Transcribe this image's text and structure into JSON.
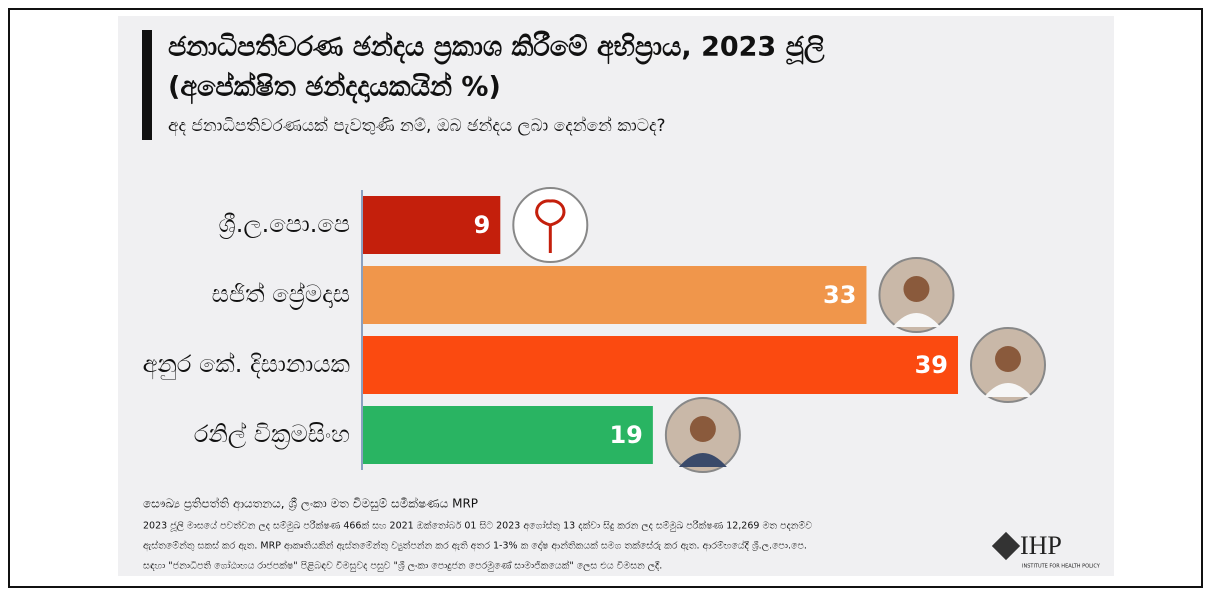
{
  "chart_data": {
    "type": "hbar",
    "title": [
      "ජනාධිපතිවරණ ඡන්දය ප්‍රකාශ කිරීමේ අභිප්‍රාය, 2023 ජූලි",
      "(අපේක්ෂිත ඡන්දදායකයින් %)"
    ],
    "subtitle": "අද ජනාධිපතිවරණයක් පැවතුණි නම්, ඔබ ඡන්දය ලබා දෙන්නේ කාටද?",
    "categories": [
      "ශ්‍රී.ල.පො.පෙ",
      "සජිත් ප්‍රේමදාස",
      "අනුර කේ. දිසානායක",
      "රනිල් වික්‍රමසිංහ"
    ],
    "values": [
      9,
      33,
      39,
      19
    ],
    "colors": [
      "#c41f0c",
      "#f0964b",
      "#fb4a10",
      "#29b462"
    ],
    "source": "සෞඛ්‍ය ප්‍රතිපත්ති ආයතනය, ශ්‍රී ලංකා මත විමසුම් සමීක්ෂණය MRP",
    "notes": [
      "2023 ජූලි මාසයේ පවත්වන ලද සම්මුඛ පරීක්ෂණ 466ක් සහ 2021 ඔක්තෝබර් 01 සිට 2023 අගෝස්තු 13 දක්වා සිදු කරන ලද සම්මුඛ පරීක්ෂණ 12,269 මත පදනම්ව",
      "ඇස්තමේන්තු සකස් කර ඇත. MRP ආකෘතියකින් ඇස්තමේන්තු ව්‍යුත්පන්න කර ඇති අතර 1-3% ක දෝෂ ආන්තිකයක් සමග තක්සේරු කර ඇත. ආරම්භයේදී ශ්‍රී.ල.පො.පෙ.",
      "සඳහා \"ජනාධිපති ගෝඨාභය රාජපක්ෂ\" පිළිබඳව විමසුවද පසුව \"ශ්‍රී ලංකා පොදුජන පෙරමුණේ සාමාජිකයෙක්\" ලෙස එය විමසන ලදී."
    ],
    "logo": "IHP",
    "logo_subtitle": "INSTITUTE FOR HEALTH POLICY"
  }
}
